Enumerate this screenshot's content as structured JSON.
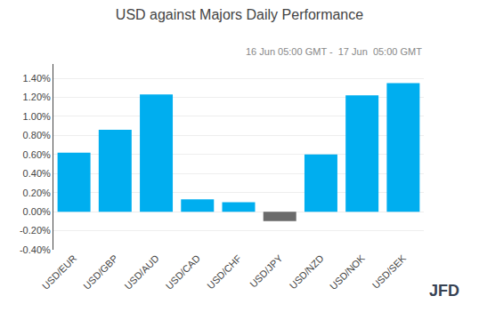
{
  "chart_data": {
    "type": "bar",
    "title": "USD against Majors Daily Performance",
    "subtitle": "16 Jun 05:00 GMT -  17 Jun  05:00 GMT",
    "annotations": [
      "JFD"
    ],
    "categories": [
      "USD/EUR",
      "USD/GBP",
      "USD/AUD",
      "USD/CAD",
      "USD/CHF",
      "USD/JPY",
      "USD/NZD",
      "USD/NOK",
      "USD/SEK"
    ],
    "values": [
      0.0062,
      0.0086,
      0.0123,
      0.0013,
      0.001,
      -0.001,
      0.006,
      0.0122,
      0.0135
    ],
    "colors": [
      "#00AEEF",
      "#00AEEF",
      "#00AEEF",
      "#00AEEF",
      "#00AEEF",
      "#6B6B6B",
      "#00AEEF",
      "#00AEEF",
      "#00AEEF"
    ],
    "ylim": [
      -0.004,
      0.0155
    ],
    "yticks": [
      {
        "value": -0.004,
        "label": "-0.40%"
      },
      {
        "value": -0.002,
        "label": "-0.20%"
      },
      {
        "value": 0.0,
        "label": "0.00%"
      },
      {
        "value": 0.002,
        "label": "0.20%"
      },
      {
        "value": 0.004,
        "label": "0.40%"
      },
      {
        "value": 0.006,
        "label": "0.60%"
      },
      {
        "value": 0.008,
        "label": "0.80%"
      },
      {
        "value": 0.01,
        "label": "1.00%"
      },
      {
        "value": 0.012,
        "label": "1.20%"
      },
      {
        "value": 0.014,
        "label": "1.40%"
      }
    ],
    "grid": true
  }
}
